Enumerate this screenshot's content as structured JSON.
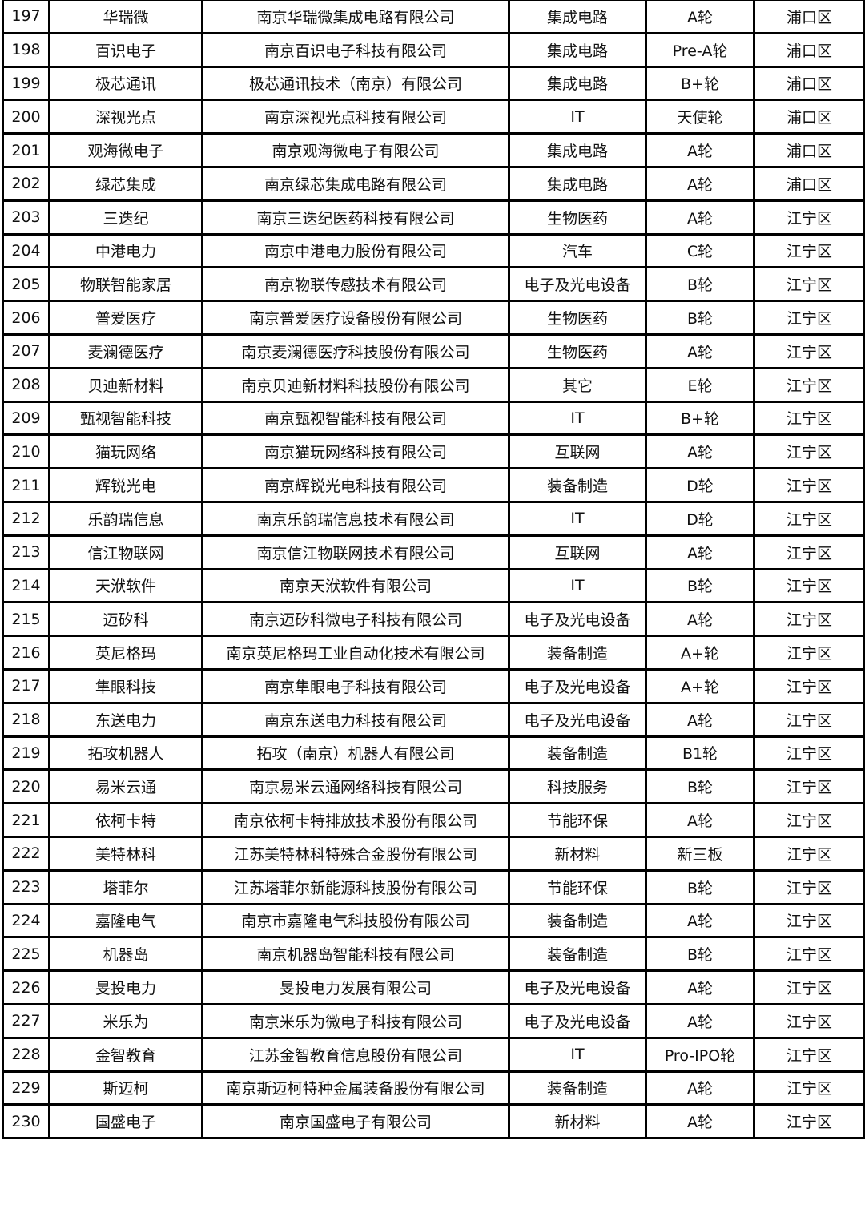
{
  "rows": [
    [
      "197",
      "华瑞微",
      "南京华瑞微集成电路有限公司",
      "集成电路",
      "A轮",
      "浦口区"
    ],
    [
      "198",
      "百识电子",
      "南京百识电子科技有限公司",
      "集成电路",
      "Pre-A轮",
      "浦口区"
    ],
    [
      "199",
      "极芯通讯",
      "极芯通讯技术（南京）有限公司",
      "集成电路",
      "B+轮",
      "浦口区"
    ],
    [
      "200",
      "深视光点",
      "南京深视光点科技有限公司",
      "IT",
      "天使轮",
      "浦口区"
    ],
    [
      "201",
      "观海微电子",
      "南京观海微电子有限公司",
      "集成电路",
      "A轮",
      "浦口区"
    ],
    [
      "202",
      "绿芯集成",
      "南京绿芯集成电路有限公司",
      "集成电路",
      "A轮",
      "浦口区"
    ],
    [
      "203",
      "三迭纪",
      "南京三迭纪医药科技有限公司",
      "生物医药",
      "A轮",
      "江宁区"
    ],
    [
      "204",
      "中港电力",
      "南京中港电力股份有限公司",
      "汽车",
      "C轮",
      "江宁区"
    ],
    [
      "205",
      "物联智能家居",
      "南京物联传感技术有限公司",
      "电子及光电设备",
      "B轮",
      "江宁区"
    ],
    [
      "206",
      "普爱医疗",
      "南京普爱医疗设备股份有限公司",
      "生物医药",
      "B轮",
      "江宁区"
    ],
    [
      "207",
      "麦澜德医疗",
      "南京麦澜德医疗科技股份有限公司",
      "生物医药",
      "A轮",
      "江宁区"
    ],
    [
      "208",
      "贝迪新材料",
      "南京贝迪新材料科技股份有限公司",
      "其它",
      "E轮",
      "江宁区"
    ],
    [
      "209",
      "甄视智能科技",
      "南京甄视智能科技有限公司",
      "IT",
      "B+轮",
      "江宁区"
    ],
    [
      "210",
      "猫玩网络",
      "南京猫玩网络科技有限公司",
      "互联网",
      "A轮",
      "江宁区"
    ],
    [
      "211",
      "辉锐光电",
      "南京辉锐光电科技有限公司",
      "装备制造",
      "D轮",
      "江宁区"
    ],
    [
      "212",
      "乐韵瑞信息",
      "南京乐韵瑞信息技术有限公司",
      "IT",
      "D轮",
      "江宁区"
    ],
    [
      "213",
      "信江物联网",
      "南京信江物联网技术有限公司",
      "互联网",
      "A轮",
      "江宁区"
    ],
    [
      "214",
      "天洑软件",
      "南京天洑软件有限公司",
      "IT",
      "B轮",
      "江宁区"
    ],
    [
      "215",
      "迈矽科",
      "南京迈矽科微电子科技有限公司",
      "电子及光电设备",
      "A轮",
      "江宁区"
    ],
    [
      "216",
      "英尼格玛",
      "南京英尼格玛工业自动化技术有限公司",
      "装备制造",
      "A+轮",
      "江宁区"
    ],
    [
      "217",
      "隼眼科技",
      "南京隼眼电子科技有限公司",
      "电子及光电设备",
      "A+轮",
      "江宁区"
    ],
    [
      "218",
      "东送电力",
      "南京东送电力科技有限公司",
      "电子及光电设备",
      "A轮",
      "江宁区"
    ],
    [
      "219",
      "拓攻机器人",
      "拓攻（南京）机器人有限公司",
      "装备制造",
      "B1轮",
      "江宁区"
    ],
    [
      "220",
      "易米云通",
      "南京易米云通网络科技有限公司",
      "科技服务",
      "B轮",
      "江宁区"
    ],
    [
      "221",
      "依柯卡特",
      "南京依柯卡特排放技术股份有限公司",
      "节能环保",
      "A轮",
      "江宁区"
    ],
    [
      "222",
      "美特林科",
      "江苏美特林科特殊合金股份有限公司",
      "新材料",
      "新三板",
      "江宁区"
    ],
    [
      "223",
      "塔菲尔",
      "江苏塔菲尔新能源科技股份有限公司",
      "节能环保",
      "B轮",
      "江宁区"
    ],
    [
      "224",
      "嘉隆电气",
      "南京市嘉隆电气科技股份有限公司",
      "装备制造",
      "A轮",
      "江宁区"
    ],
    [
      "225",
      "机器岛",
      "南京机器岛智能科技有限公司",
      "装备制造",
      "B轮",
      "江宁区"
    ],
    [
      "226",
      "旻投电力",
      "旻投电力发展有限公司",
      "电子及光电设备",
      "A轮",
      "江宁区"
    ],
    [
      "227",
      "米乐为",
      "南京米乐为微电子科技有限公司",
      "电子及光电设备",
      "A轮",
      "江宁区"
    ],
    [
      "228",
      "金智教育",
      "江苏金智教育信息股份有限公司",
      "IT",
      "Pro-IPO轮",
      "江宁区"
    ],
    [
      "229",
      "斯迈柯",
      "南京斯迈柯特种金属装备股份有限公司",
      "装备制造",
      "A轮",
      "江宁区"
    ],
    [
      "230",
      "国盛电子",
      "南京国盛电子有限公司",
      "新材料",
      "A轮",
      "江宁区"
    ]
  ]
}
